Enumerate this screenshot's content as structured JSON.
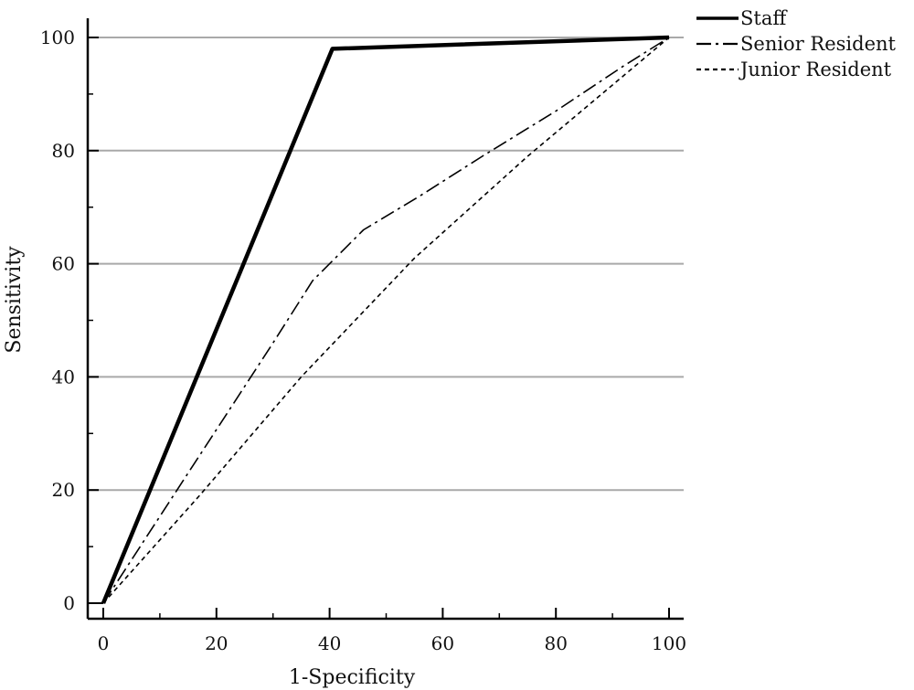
{
  "chart_data": {
    "type": "line",
    "xlabel": "1-Specificity",
    "ylabel": "Sensitivity",
    "xlim": [
      0,
      100
    ],
    "ylim": [
      0,
      100
    ],
    "x_ticks": [
      0,
      20,
      40,
      60,
      80,
      100
    ],
    "y_ticks": [
      0,
      20,
      40,
      60,
      80,
      100
    ],
    "grid": "horizontal",
    "legend_position": "top-right",
    "series": [
      {
        "name": "Staff",
        "style": "solid",
        "points": [
          [
            0,
            0
          ],
          [
            40.5,
            98
          ],
          [
            100,
            100
          ]
        ]
      },
      {
        "name": "Senior Resident",
        "style": "dash-dot",
        "points": [
          [
            0,
            0
          ],
          [
            15,
            23
          ],
          [
            30,
            46
          ],
          [
            37,
            57
          ],
          [
            46,
            66
          ],
          [
            56,
            72
          ],
          [
            67,
            79
          ],
          [
            80,
            87
          ],
          [
            92,
            95
          ],
          [
            100,
            100
          ]
        ]
      },
      {
        "name": "Junior Resident",
        "style": "dashed",
        "points": [
          [
            0,
            0
          ],
          [
            17,
            19
          ],
          [
            35,
            40
          ],
          [
            55,
            61
          ],
          [
            75,
            79
          ],
          [
            100,
            100
          ]
        ]
      }
    ]
  }
}
